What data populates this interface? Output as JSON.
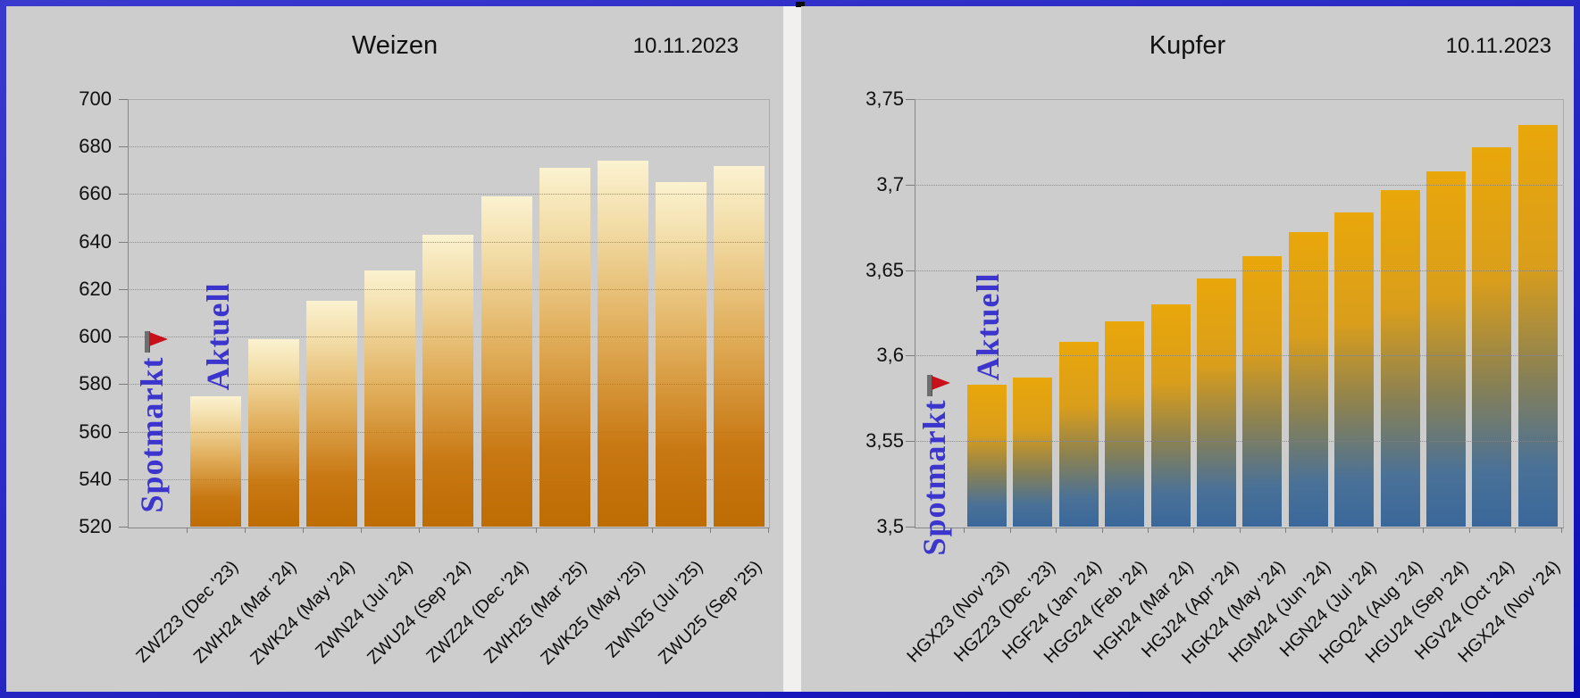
{
  "frame": {
    "border_color": "#2525C2",
    "panel_bg": "#CDCDCD",
    "divider_color": "#F2EFEF",
    "accent_text_color": "#3B35CE",
    "marker_flag_color": "#C8101B",
    "marker_pole_color": "#6E6E6E"
  },
  "chart_data": [
    {
      "type": "bar",
      "title": "Weizen",
      "date": "10.11.2023",
      "categories": [
        "ZWZ23 (Dec '23)",
        "ZWH24 (Mar '24)",
        "ZWK24 (May '24)",
        "ZWN24 (Jul '24)",
        "ZWU24 (Sep '24)",
        "ZWZ24 (Dec '24)",
        "ZWH25 (Mar '25)",
        "ZWK25 (May '25)",
        "ZWN25 (Jul '25)",
        "ZWU25 (Sep '25)"
      ],
      "values": [
        575,
        599,
        615,
        628,
        643,
        659,
        671,
        674,
        665,
        672
      ],
      "ylim": [
        520,
        700
      ],
      "ytick_labels": [
        "520",
        "540",
        "560",
        "580",
        "600",
        "620",
        "640",
        "660",
        "680",
        "700"
      ],
      "grid": true,
      "legend": "none",
      "bar_gradient_top": "#FBF2D0",
      "bar_gradient_bottom": "#BE6C04",
      "spot_marker_value": 599,
      "spot_label": "Spotmarkt",
      "current_label": "Aktuell"
    },
    {
      "type": "bar",
      "title": "Kupfer",
      "date": "10.11.2023",
      "categories": [
        "HGX23 (Nov '23)",
        "HGZ23 (Dec '23)",
        "HGF24 (Jan '24)",
        "HGG24 (Feb '24)",
        "HGH24 (Mar 24)",
        "HGJ24 (Apr '24)",
        "HGK24 (May '24)",
        "HGM24 (Jun '24)",
        "HGN24 (Jul '24)",
        "HGQ24 (Aug '24)",
        "HGU24 (Sep '24)",
        "HGV24 (Oct '24)",
        "HGX24 (Nov '24)"
      ],
      "values": [
        3.583,
        3.587,
        3.608,
        3.62,
        3.63,
        3.645,
        3.658,
        3.672,
        3.684,
        3.697,
        3.708,
        3.722,
        3.735
      ],
      "ylim": [
        3.5,
        3.75
      ],
      "ytick_labels": [
        "3,5",
        "3,55",
        "3,6",
        "3,65",
        "3,7",
        "3,75"
      ],
      "grid": true,
      "legend": "none",
      "bar_gradient_top": "#E9A70A",
      "bar_gradient_bottom": "#3A689B",
      "spot_marker_value": 3.584,
      "spot_label": "Spotmarkt",
      "current_label": "Aktuell"
    }
  ]
}
